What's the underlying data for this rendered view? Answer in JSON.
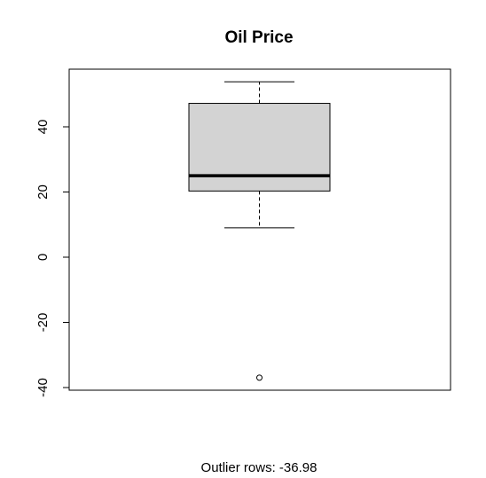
{
  "chart_data": {
    "type": "boxplot",
    "title": "Oil Price",
    "xlabel": "",
    "ylabel": "",
    "sublabel": "Outlier rows:  -36.98",
    "ylim": [
      -41,
      58
    ],
    "yticks": [
      -40,
      -20,
      0,
      20,
      40
    ],
    "ytick_labels": [
      "-40",
      "-20",
      "0",
      "20",
      "40"
    ],
    "boxplot": {
      "whisker_low": 9,
      "q1": 20.3,
      "median": 25,
      "q3": 47.2,
      "whisker_high": 53.8,
      "outliers": [
        -36.98
      ]
    },
    "colors": {
      "box_fill": "#d3d3d3",
      "line": "#000000"
    }
  }
}
